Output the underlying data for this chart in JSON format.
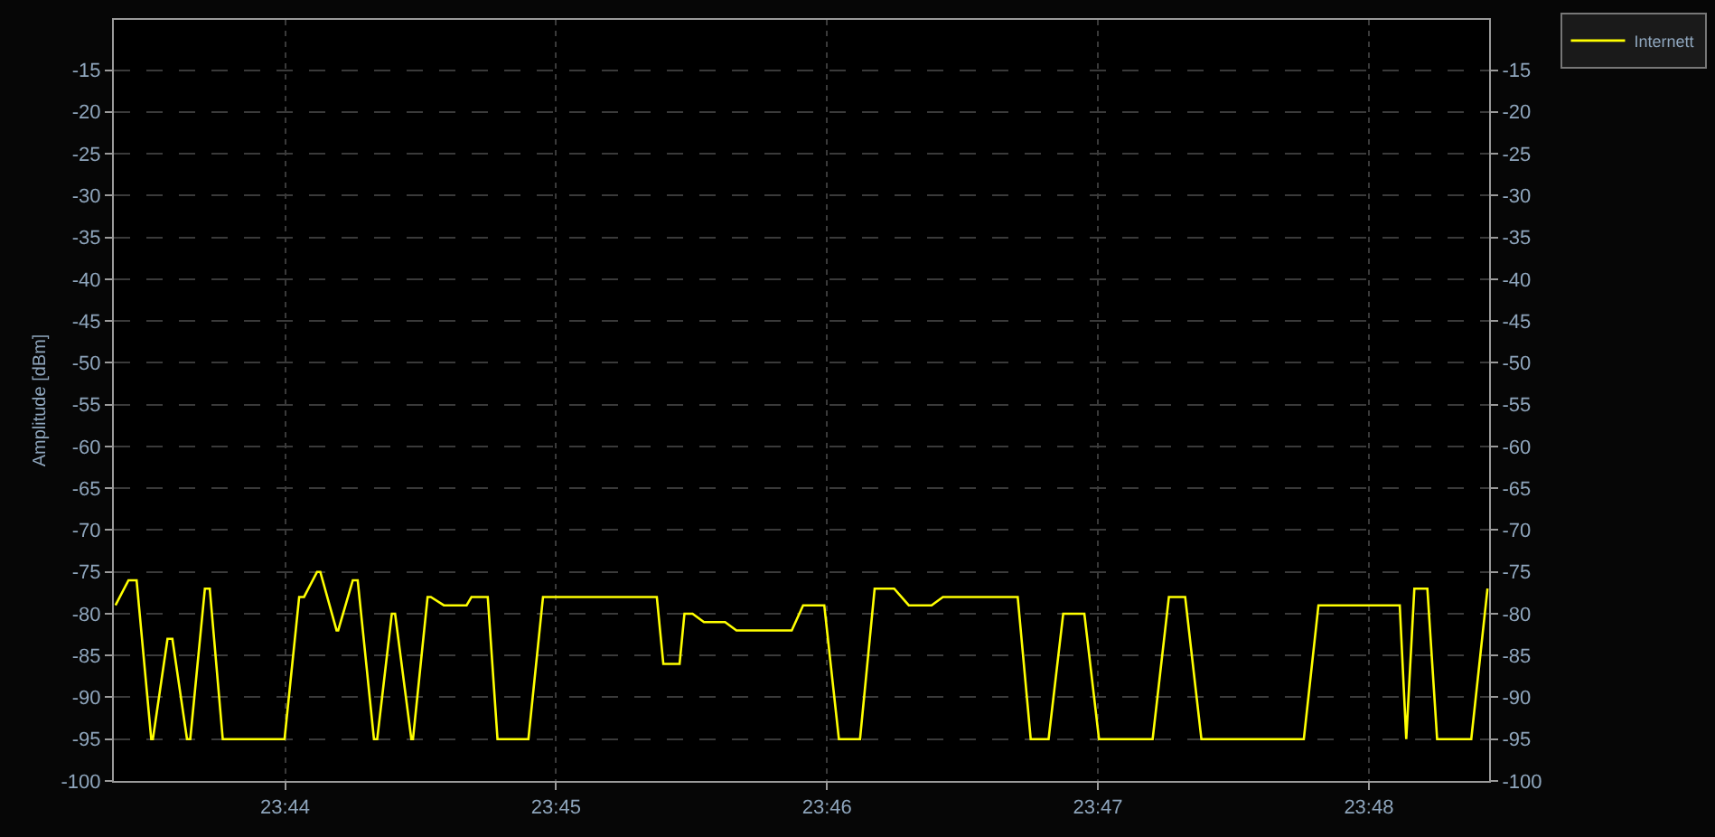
{
  "chart_data": {
    "type": "line",
    "ylabel": "Amplitude [dBm]",
    "legend": "top right",
    "grid": true,
    "marker": "none",
    "line_style": "solid",
    "xlim": [
      23.7228,
      23.8074
    ],
    "xticks": [
      {
        "value": 23.733333,
        "label": "23:44"
      },
      {
        "value": 23.75,
        "label": "23:45"
      },
      {
        "value": 23.766667,
        "label": "23:46"
      },
      {
        "value": 23.783333,
        "label": "23:47"
      },
      {
        "value": 23.8,
        "label": "23:48"
      }
    ],
    "ylim": [
      -100,
      -9
    ],
    "yticks": [
      -100,
      -95,
      -90,
      -85,
      -80,
      -75,
      -70,
      -65,
      -60,
      -55,
      -50,
      -45,
      -40,
      -35,
      -30,
      -25,
      -20,
      -15
    ],
    "y2lim": [
      -100,
      -9
    ],
    "y2ticks": [
      -100,
      -95,
      -90,
      -85,
      -80,
      -75,
      -70,
      -65,
      -60,
      -55,
      -50,
      -45,
      -40,
      -35,
      -30,
      -25,
      -20,
      -15
    ],
    "series": [
      {
        "name": "Internett",
        "color": "#ffff00",
        "x": [
          23.7229,
          23.7237,
          23.7242,
          23.7251,
          23.7252,
          23.7261,
          23.7264,
          23.7273,
          23.7275,
          23.7284,
          23.7287,
          23.7295,
          23.7333,
          23.7342,
          23.7345,
          23.7353,
          23.7355,
          23.7365,
          23.7366,
          23.7375,
          23.7378,
          23.7388,
          23.739,
          23.7399,
          23.7401,
          23.7411,
          23.7412,
          23.7421,
          23.7423,
          23.7431,
          23.7445,
          23.7448,
          23.7458,
          23.7464,
          23.7483,
          23.7492,
          23.7562,
          23.7566,
          23.7576,
          23.7579,
          23.7584,
          23.7591,
          23.7604,
          23.7611,
          23.7645,
          23.7652,
          23.7665,
          23.7674,
          23.7687,
          23.7696,
          23.7708,
          23.7717,
          23.7731,
          23.7738,
          23.7784,
          23.7792,
          23.7803,
          23.7812,
          23.7825,
          23.7834,
          23.7867,
          23.7877,
          23.7887,
          23.7897,
          23.796,
          23.7969,
          23.8019,
          23.8023,
          23.8028,
          23.8036,
          23.8042,
          23.8063,
          23.8073
        ],
        "values": [
          -79,
          -76,
          -76,
          -95,
          -95,
          -83,
          -83,
          -95,
          -95,
          -77,
          -77,
          -95,
          -95,
          -78,
          -78,
          -75,
          -75,
          -82,
          -82,
          -76,
          -76,
          -95,
          -95,
          -80,
          -80,
          -95,
          -95,
          -78,
          -78,
          -79,
          -79,
          -78,
          -78,
          -95,
          -95,
          -78,
          -78,
          -86,
          -86,
          -80,
          -80,
          -81,
          -81,
          -82,
          -82,
          -79,
          -79,
          -95,
          -95,
          -77,
          -77,
          -79,
          -79,
          -78,
          -78,
          -95,
          -95,
          -80,
          -80,
          -95,
          -95,
          -78,
          -78,
          -95,
          -95,
          -79,
          -79,
          -95,
          -77,
          -77,
          -95,
          -95,
          -77
        ]
      }
    ]
  }
}
